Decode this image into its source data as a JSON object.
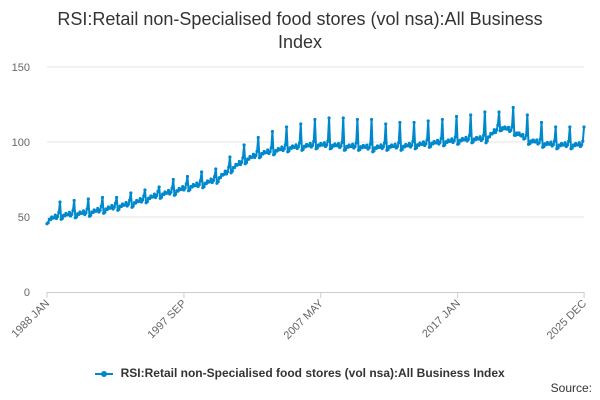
{
  "chart_data": {
    "type": "line",
    "title_lines": [
      "RSI:Retail non-Specialised food stores (vol nsa):All Business",
      "Index"
    ],
    "xlabel": "",
    "ylabel": "",
    "x_start": "1988-01",
    "x_end": "2025-12",
    "ylim": [
      0,
      150
    ],
    "y_ticks": [
      "0",
      "50",
      "100",
      "150"
    ],
    "x_ticks": [
      {
        "label": "1988 JAN",
        "t": 1988.0
      },
      {
        "label": "1997 SEP",
        "t": 1997.67
      },
      {
        "label": "2007 MAY",
        "t": 2007.33
      },
      {
        "label": "2017 JAN",
        "t": 2017.0
      },
      {
        "label": "2025 DEC",
        "t": 2025.92
      }
    ],
    "grid": true,
    "series": [
      {
        "name": "RSI:Retail non-Specialised food stores (vol nsa):All Business Index",
        "color": "#0088cc",
        "annual_points": [
          {
            "year": 1988,
            "base": 48,
            "dec": 60
          },
          {
            "year": 1989,
            "base": 51,
            "dec": 61
          },
          {
            "year": 1990,
            "base": 52,
            "dec": 62
          },
          {
            "year": 1991,
            "base": 53,
            "dec": 63
          },
          {
            "year": 1992,
            "base": 55,
            "dec": 63
          },
          {
            "year": 1993,
            "base": 57,
            "dec": 66
          },
          {
            "year": 1994,
            "base": 59,
            "dec": 68
          },
          {
            "year": 1995,
            "base": 62,
            "dec": 70
          },
          {
            "year": 1996,
            "base": 65,
            "dec": 75
          },
          {
            "year": 1997,
            "base": 67,
            "dec": 77
          },
          {
            "year": 1998,
            "base": 70,
            "dec": 80
          },
          {
            "year": 1999,
            "base": 72,
            "dec": 82
          },
          {
            "year": 2000,
            "base": 75,
            "dec": 90
          },
          {
            "year": 2001,
            "base": 82,
            "dec": 98
          },
          {
            "year": 2002,
            "base": 88,
            "dec": 103
          },
          {
            "year": 2003,
            "base": 92,
            "dec": 107
          },
          {
            "year": 2004,
            "base": 94,
            "dec": 110
          },
          {
            "year": 2005,
            "base": 96,
            "dec": 112
          },
          {
            "year": 2006,
            "base": 97,
            "dec": 115
          },
          {
            "year": 2007,
            "base": 98,
            "dec": 116
          },
          {
            "year": 2008,
            "base": 98,
            "dec": 116
          },
          {
            "year": 2009,
            "base": 97,
            "dec": 115
          },
          {
            "year": 2010,
            "base": 97,
            "dec": 115
          },
          {
            "year": 2011,
            "base": 96,
            "dec": 112
          },
          {
            "year": 2012,
            "base": 97,
            "dec": 113
          },
          {
            "year": 2013,
            "base": 97,
            "dec": 113
          },
          {
            "year": 2014,
            "base": 98,
            "dec": 114
          },
          {
            "year": 2015,
            "base": 99,
            "dec": 115
          },
          {
            "year": 2016,
            "base": 100,
            "dec": 117
          },
          {
            "year": 2017,
            "base": 101,
            "dec": 118
          },
          {
            "year": 2018,
            "base": 102,
            "dec": 120
          },
          {
            "year": 2019,
            "base": 102,
            "dec": 120
          },
          {
            "year": 2020,
            "base": 110,
            "dec": 123
          },
          {
            "year": 2021,
            "base": 107,
            "dec": 118
          },
          {
            "year": 2022,
            "base": 101,
            "dec": 113
          },
          {
            "year": 2023,
            "base": 99,
            "dec": 110
          },
          {
            "year": 2024,
            "base": 98,
            "dec": 110
          },
          {
            "year": 2025,
            "base": 98,
            "dec": 110
          }
        ]
      }
    ],
    "legend_position": "bottom",
    "source_label": "Source:"
  }
}
